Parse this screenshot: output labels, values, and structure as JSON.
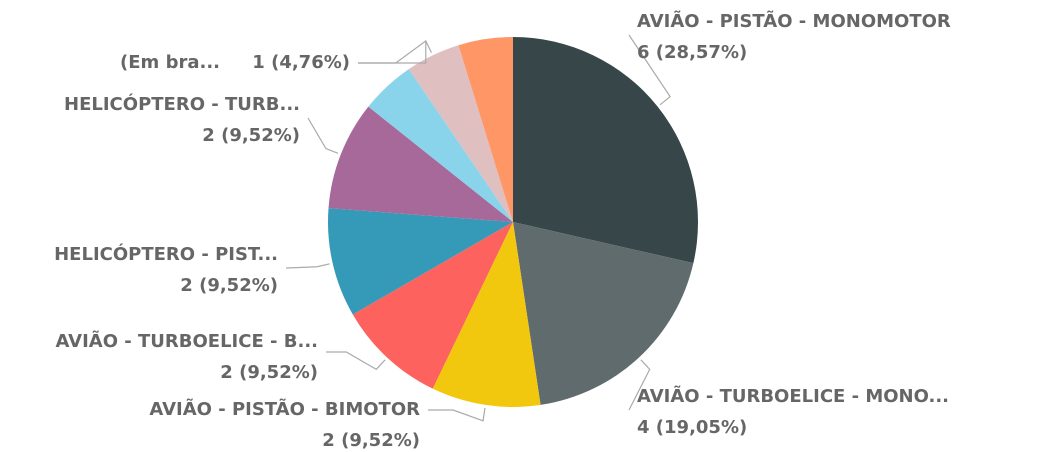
{
  "chart_data": {
    "type": "pie",
    "categories": [
      "AVIÃO - PISTÃO - MONOMOTOR",
      "AVIÃO - TURBOELICE - MONO...",
      "AVIÃO - PISTÃO - BIMOTOR",
      "AVIÃO - TURBOELICE - B...",
      "HELICÓPTERO - PIST...",
      "HELICÓPTERO - TURB...",
      null,
      "(Em bra...",
      null
    ],
    "values": [
      6,
      4,
      2,
      2,
      2,
      2,
      1,
      1,
      1
    ],
    "value_labels": [
      "6 (28,57%)",
      "4 (19,05%)",
      "2 (9,52%)",
      "2 (9,52%)",
      "2 (9,52%)",
      "2 (9,52%)",
      null,
      "1 (4,76%)",
      null
    ],
    "colors": [
      "#374649",
      "#5F6B6D",
      "#F2C80F",
      "#FD625E",
      "#3599B8",
      "#A66999",
      "#8AD4EB",
      "#DFBFBF",
      "#FE9666"
    ]
  }
}
